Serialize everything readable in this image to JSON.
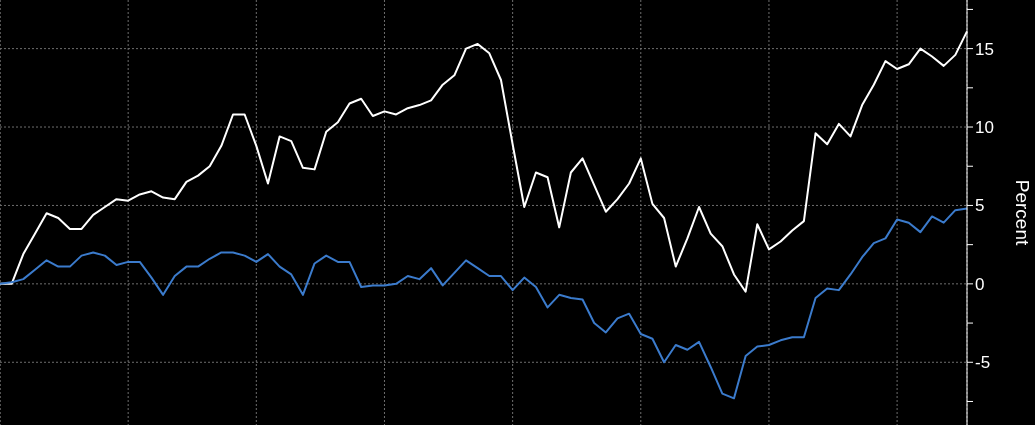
{
  "chart_data": {
    "type": "line",
    "ylabel": "Percent",
    "categories": [
      null,
      null,
      null,
      null,
      null,
      null,
      null,
      null,
      null,
      null,
      null,
      null,
      null,
      null,
      null,
      null,
      null,
      null,
      null,
      null,
      null,
      null,
      null,
      null,
      null,
      null,
      null,
      null,
      null,
      null,
      null,
      null,
      null,
      null,
      null,
      null,
      null,
      null,
      null,
      null,
      null,
      null,
      null,
      null,
      null,
      null,
      null,
      null,
      null,
      null,
      null,
      null,
      null,
      null,
      null,
      null,
      null,
      null,
      null,
      null,
      null,
      null,
      null,
      null,
      null,
      null,
      null,
      null,
      null,
      null,
      null,
      null,
      null,
      null,
      null,
      null,
      null,
      null,
      null,
      null,
      null,
      null,
      null,
      null
    ],
    "series": [
      {
        "color": "#ffffff",
        "values": [
          0,
          0,
          1.9,
          3.2,
          4.5,
          4.2,
          3.5,
          3.5,
          4.4,
          4.9,
          5.4,
          5.3,
          5.7,
          5.9,
          5.5,
          5.4,
          6.5,
          6.9,
          7.5,
          8.8,
          10.8,
          10.8,
          8.8,
          6.4,
          9.4,
          9.1,
          7.4,
          7.3,
          9.7,
          10.3,
          11.5,
          11.8,
          10.7,
          11.0,
          10.8,
          11.2,
          11.4,
          11.7,
          12.7,
          13.3,
          15.0,
          15.3,
          14.7,
          13.0,
          8.9,
          4.9,
          7.1,
          6.8,
          3.6,
          7.1,
          8.0,
          6.3,
          4.6,
          5.4,
          6.4,
          8.0,
          5.1,
          4.2,
          1.1,
          2.9,
          4.9,
          3.2,
          2.4,
          0.6,
          -0.5,
          3.8,
          2.2,
          2.7,
          3.4,
          4.0,
          9.6,
          8.9,
          10.2,
          9.4,
          11.4,
          12.7,
          14.2,
          13.7,
          14.0,
          15.0,
          14.5,
          13.9,
          14.6,
          16.1
        ]
      },
      {
        "color": "#3b7bcc",
        "values": [
          0,
          0.1,
          0.3,
          0.9,
          1.5,
          1.1,
          1.1,
          1.8,
          2.0,
          1.8,
          1.2,
          1.4,
          1.4,
          0.4,
          -0.7,
          0.5,
          1.1,
          1.1,
          1.6,
          2.0,
          2.0,
          1.8,
          1.4,
          1.9,
          1.1,
          0.6,
          -0.7,
          1.3,
          1.8,
          1.4,
          1.4,
          -0.2,
          -0.1,
          -0.1,
          0,
          0.5,
          0.3,
          1.0,
          -0.1,
          0.7,
          1.5,
          1.0,
          0.5,
          0.5,
          -0.4,
          0.4,
          -0.2,
          -1.5,
          -0.7,
          -0.9,
          -1.0,
          -2.5,
          -3.1,
          -2.2,
          -1.9,
          -3.2,
          -3.5,
          -5.0,
          -3.9,
          -4.2,
          -3.7,
          -5.3,
          -7.0,
          -7.3,
          -4.6,
          -4.0,
          -3.9,
          -3.6,
          -3.4,
          -3.4,
          -0.9,
          -0.3,
          -0.4,
          0.6,
          1.7,
          2.6,
          2.9,
          4.1,
          3.9,
          3.3,
          4.3,
          3.9,
          4.7,
          4.8
        ]
      }
    ],
    "ylim": [
      -9,
      18.1
    ],
    "yticks": [
      {
        "value": -7.5,
        "label": null
      },
      -5,
      {
        "value": -2.5,
        "label": null
      },
      0,
      {
        "value": 2.5,
        "label": null
      },
      5,
      {
        "value": 7.5,
        "label": null
      },
      10,
      {
        "value": 12.5,
        "label": null
      },
      15,
      {
        "value": 17.5,
        "label": null
      }
    ],
    "grid": true,
    "tick_labels": "y",
    "marker": "none",
    "line_style": "solid"
  }
}
